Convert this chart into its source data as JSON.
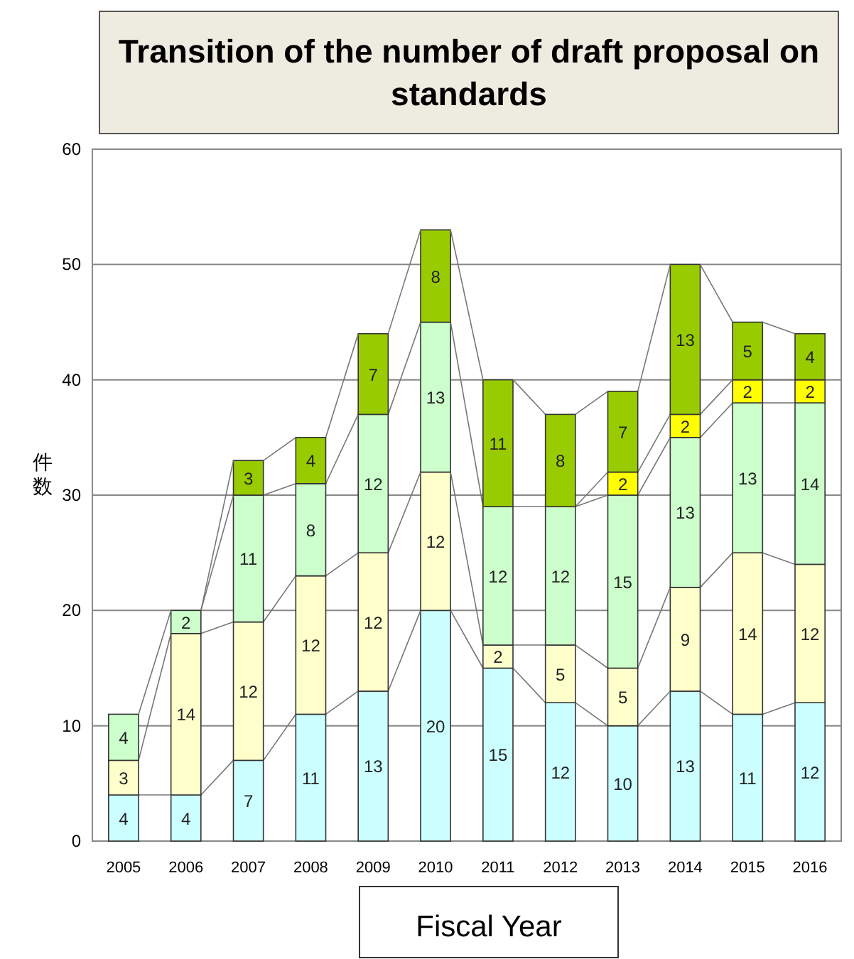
{
  "chart_data": {
    "type": "bar",
    "stacked": true,
    "title": "Transition of the number of draft proposal on standards",
    "xlabel": "Fiscal Year",
    "ylabel": "件数",
    "categories": [
      "2005",
      "2006",
      "2007",
      "2008",
      "2009",
      "2010",
      "2011",
      "2012",
      "2013",
      "2014",
      "2015",
      "2016"
    ],
    "series": [
      {
        "color": "#ccffff",
        "values": [
          4,
          4,
          7,
          11,
          13,
          20,
          15,
          12,
          10,
          13,
          11,
          12
        ]
      },
      {
        "color": "#ffffcc",
        "values": [
          3,
          14,
          12,
          12,
          12,
          12,
          2,
          5,
          5,
          9,
          14,
          12
        ]
      },
      {
        "color": "#ccffcc",
        "values": [
          4,
          2,
          11,
          8,
          12,
          13,
          12,
          12,
          15,
          13,
          13,
          14
        ]
      },
      {
        "color": "#ffff00",
        "values": [
          null,
          null,
          null,
          null,
          null,
          null,
          null,
          null,
          2,
          2,
          2,
          2
        ]
      },
      {
        "color": "#99cc00",
        "values": [
          null,
          null,
          3,
          4,
          7,
          8,
          11,
          8,
          7,
          13,
          5,
          4
        ]
      }
    ],
    "ylim": [
      0,
      60
    ],
    "yticks": [
      0,
      10,
      20,
      30,
      40,
      50,
      60
    ],
    "grid": "y",
    "data_labels": true
  }
}
